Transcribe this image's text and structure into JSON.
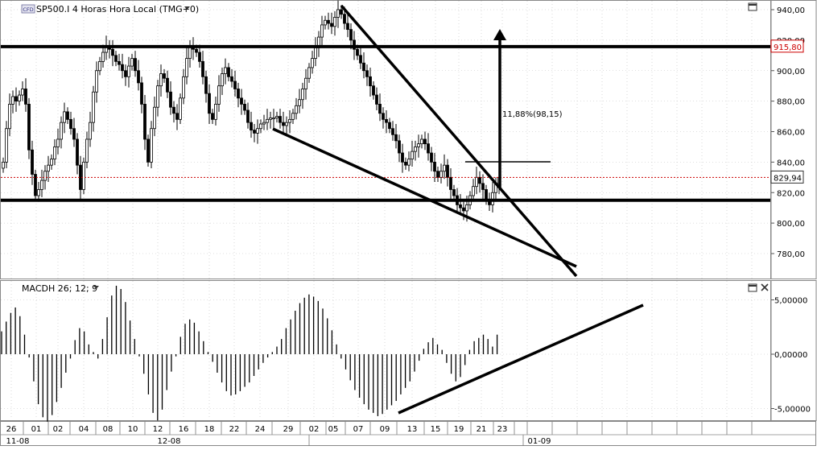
{
  "chart_data": [
    {
      "type": "candlestick",
      "header": "SP500.I 4 Horas Hora Local (TMG+0)",
      "badge": "CFD",
      "y_ticks": [
        "940,00",
        "920,00",
        "900,00",
        "880,00",
        "860,00",
        "840,00",
        "820,00",
        "800,00",
        "780,00"
      ],
      "y_tick_values": [
        940,
        920,
        900,
        880,
        860,
        840,
        820,
        800,
        780
      ],
      "ylim": [
        764,
        944
      ],
      "last_price_label": "829,94",
      "last_price": 829.94,
      "resistance_label": "915,80",
      "resistance": 915.8,
      "support": 815,
      "measure_label": "11,88%(98,15)",
      "colors": {
        "resistance_badge": "#cc0000",
        "last_price_line": "#cc0000",
        "candles": "#000000",
        "grid": "#c0c0c0"
      },
      "x_ticks": [
        "26",
        "01",
        "02",
        "04",
        "08",
        "10",
        "12",
        "16",
        "18",
        "22",
        "24",
        "29",
        "02",
        "05",
        "07",
        "09",
        "13",
        "15",
        "19",
        "21",
        "23"
      ],
      "month_labels": [
        "11-08",
        "12-08",
        "01-09"
      ],
      "close_series": [
        840,
        862,
        878,
        883,
        880,
        884,
        888,
        878,
        848,
        832,
        818,
        822,
        828,
        834,
        838,
        842,
        850,
        855,
        866,
        873,
        868,
        862,
        855,
        838,
        822,
        840,
        855,
        866,
        886,
        900,
        906,
        912,
        916,
        914,
        910,
        906,
        904,
        900,
        896,
        903,
        908,
        900,
        892,
        878,
        855,
        840,
        862,
        876,
        890,
        898,
        895,
        886,
        876,
        872,
        868,
        882,
        896,
        908,
        916,
        914,
        912,
        906,
        896,
        885,
        872,
        868,
        878,
        890,
        898,
        902,
        896,
        893,
        888,
        882,
        878,
        874,
        866,
        861,
        859,
        862,
        865,
        866,
        868,
        869,
        869,
        870,
        866,
        864,
        866,
        868,
        872,
        877,
        881,
        888,
        895,
        902,
        908,
        915,
        922,
        930,
        933,
        931,
        929,
        935,
        940,
        937,
        931,
        927,
        920,
        914,
        910,
        905,
        900,
        896,
        890,
        884,
        878,
        872,
        868,
        866,
        862,
        858,
        854,
        846,
        840,
        838,
        842,
        847,
        850,
        852,
        855,
        852,
        846,
        840,
        834,
        830,
        834,
        838,
        830,
        822,
        818,
        812,
        810,
        808,
        812,
        818,
        824,
        830,
        826,
        822,
        815,
        812,
        820,
        826,
        830
      ]
    },
    {
      "type": "histogram",
      "header": "MACDH 26; 12; 9",
      "y_ticks": [
        "5,00000",
        "0,00000",
        "-5,00000"
      ],
      "y_tick_values": [
        5,
        0,
        -5
      ],
      "ylim": [
        -6.4,
        6.6
      ],
      "values": [
        2.1,
        3.0,
        3.8,
        4.3,
        3.5,
        1.8,
        -0.3,
        -2.5,
        -4.6,
        -5.8,
        -6.2,
        -5.6,
        -4.4,
        -3.1,
        -1.7,
        -0.4,
        1.3,
        2.4,
        2.1,
        0.9,
        0.2,
        -0.4,
        1.4,
        3.4,
        5.4,
        6.3,
        6.0,
        4.8,
        3.1,
        1.4,
        -0.2,
        -1.8,
        -3.7,
        -5.4,
        -6.1,
        -5.1,
        -3.3,
        -1.6,
        -0.2,
        1.6,
        2.8,
        3.2,
        2.9,
        2.1,
        1.2,
        0.2,
        -0.7,
        -1.7,
        -2.6,
        -3.4,
        -3.8,
        -3.7,
        -3.4,
        -3.0,
        -2.6,
        -2.0,
        -1.4,
        -0.8,
        -0.3,
        0.2,
        0.7,
        1.4,
        2.4,
        3.2,
        4.0,
        4.7,
        5.2,
        5.5,
        5.3,
        4.9,
        4.2,
        3.3,
        2.2,
        0.9,
        -0.4,
        -1.4,
        -2.4,
        -3.3,
        -4.0,
        -4.6,
        -5.1,
        -5.4,
        -5.7,
        -5.5,
        -5.1,
        -4.7,
        -4.3,
        -3.7,
        -3.1,
        -2.5,
        -1.6,
        -0.6,
        0.5,
        1.1,
        1.5,
        0.9,
        0.4,
        -0.8,
        -1.8,
        -2.5,
        -2.1,
        -1.0,
        0.4,
        1.2,
        1.5,
        1.8,
        1.4,
        0.7,
        1.8
      ]
    }
  ]
}
